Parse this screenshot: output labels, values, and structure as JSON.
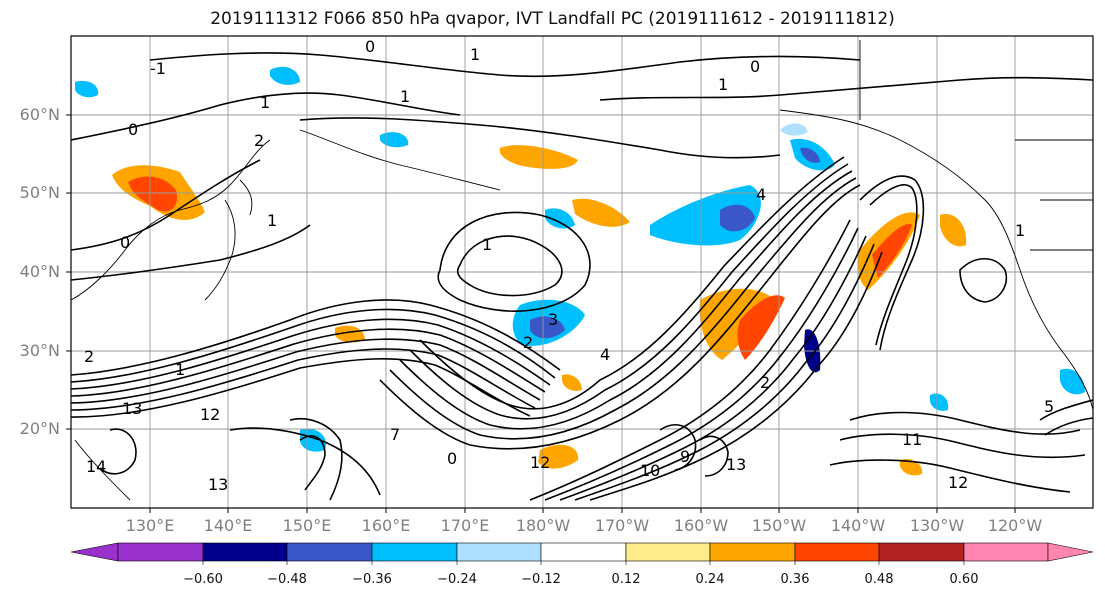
{
  "title": "2019111312 F066 850 hPa qvapor, IVT Landfall PC (2019111612 - 2019111812)",
  "lat_labels": [
    "60°N",
    "50°N",
    "40°N",
    "30°N",
    "20°N"
  ],
  "lon_labels": [
    "130°E",
    "140°E",
    "150°E",
    "160°E",
    "170°E",
    "180°W",
    "170°W",
    "160°W",
    "150°W",
    "140°W",
    "130°W",
    "120°W"
  ],
  "colorbar": {
    "ticks": [
      "−0.60",
      "−0.48",
      "−0.36",
      "−0.24",
      "−0.12",
      "0.12",
      "0.24",
      "0.36",
      "0.48",
      "0.60"
    ],
    "colors": [
      "#9932cc",
      "#00008b",
      "#3a57c8",
      "#00bfff",
      "#b0e0ff",
      "#ffffff",
      "#ffec8b",
      "#ffa500",
      "#ff4500",
      "#b22222",
      "#ff85b0"
    ]
  },
  "contour_labels": [
    "0",
    "0",
    "1",
    "1",
    "1",
    "2",
    "1",
    "1",
    "0",
    "0",
    "-1",
    "1",
    "1",
    "2",
    "3",
    "4",
    "4",
    "13",
    "12",
    "13",
    "14",
    "12",
    "11",
    "12",
    "13",
    "2",
    "5",
    "10",
    "9",
    "0",
    "7",
    "1",
    "2"
  ]
}
